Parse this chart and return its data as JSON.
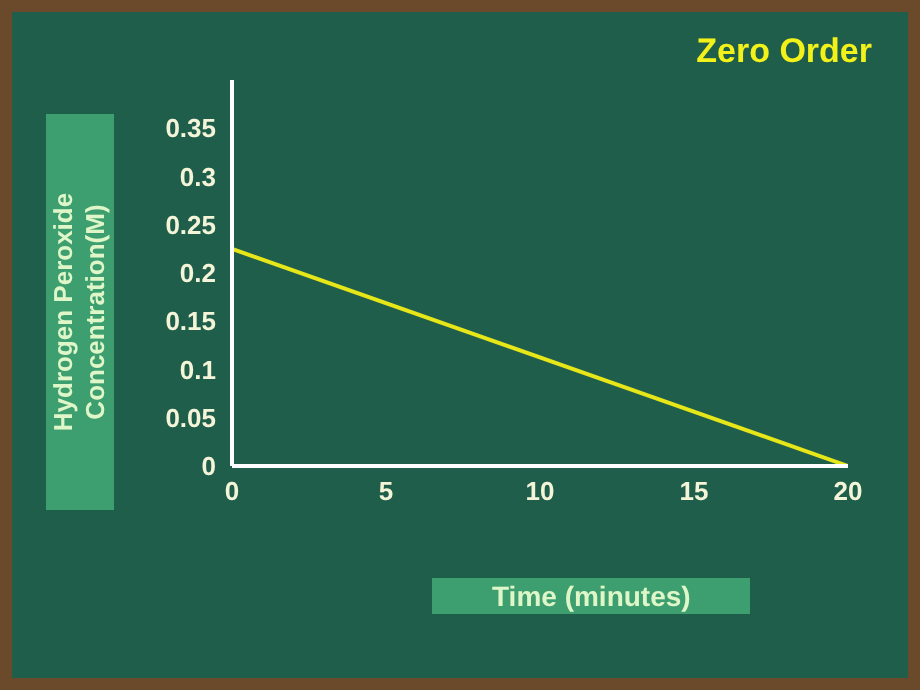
{
  "chart_data": {
    "type": "line",
    "title": "Zero Order",
    "xlabel": "Time (minutes)",
    "ylabel": "Hydrogen Peroxide Concentration(M)",
    "x": [
      0,
      20
    ],
    "series": [
      {
        "color": "#e6e619",
        "values": [
          0.225,
          0
        ]
      }
    ],
    "xlim": [
      0,
      20
    ],
    "xticks": [
      0,
      5,
      10,
      15,
      20
    ],
    "ylim": [
      0,
      0.4
    ],
    "yticks": [
      0,
      0.05,
      0.1,
      0.15,
      0.2,
      0.25,
      0.3,
      0.35
    ]
  }
}
